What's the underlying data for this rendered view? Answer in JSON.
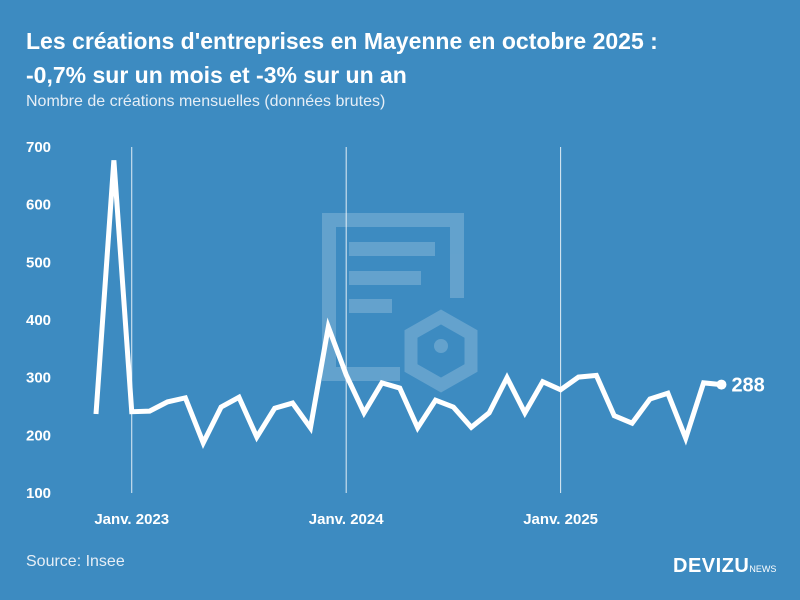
{
  "title_line1": "Les créations d'entreprises en Mayenne en octobre 2025 :",
  "title_line2": "-0,7% sur un mois et -3% sur un an",
  "subtitle": "Nombre de créations mensuelles (données brutes)",
  "source": "Source: Insee",
  "brand": {
    "name": "DEVIZU",
    "suffix": "NEWS"
  },
  "colors": {
    "background": "#3d8bc1",
    "line": "#ffffff"
  },
  "chart_data": {
    "type": "line",
    "title": "Les créations d'entreprises en Mayenne en octobre 2025 : -0,7% sur un mois et -3% sur un an",
    "ylabel": "Nombre de créations mensuelles (données brutes)",
    "ylim": [
      100,
      700
    ],
    "yticks": [
      100,
      200,
      300,
      400,
      500,
      600,
      700
    ],
    "xticks": [
      {
        "label": "Janv. 2023",
        "index": 2
      },
      {
        "label": "Janv. 2024",
        "index": 14
      },
      {
        "label": "Janv. 2025",
        "index": 26
      }
    ],
    "x_start": "2022-11",
    "x_end": "2025-10",
    "grid": "vertical at January",
    "values": [
      237,
      677,
      241,
      242,
      258,
      265,
      187,
      249,
      266,
      197,
      247,
      256,
      213,
      388,
      305,
      239,
      291,
      282,
      213,
      261,
      249,
      214,
      239,
      300,
      239,
      293,
      279,
      301,
      304,
      234,
      221,
      263,
      273,
      195,
      291,
      288
    ],
    "last_label": "288"
  }
}
